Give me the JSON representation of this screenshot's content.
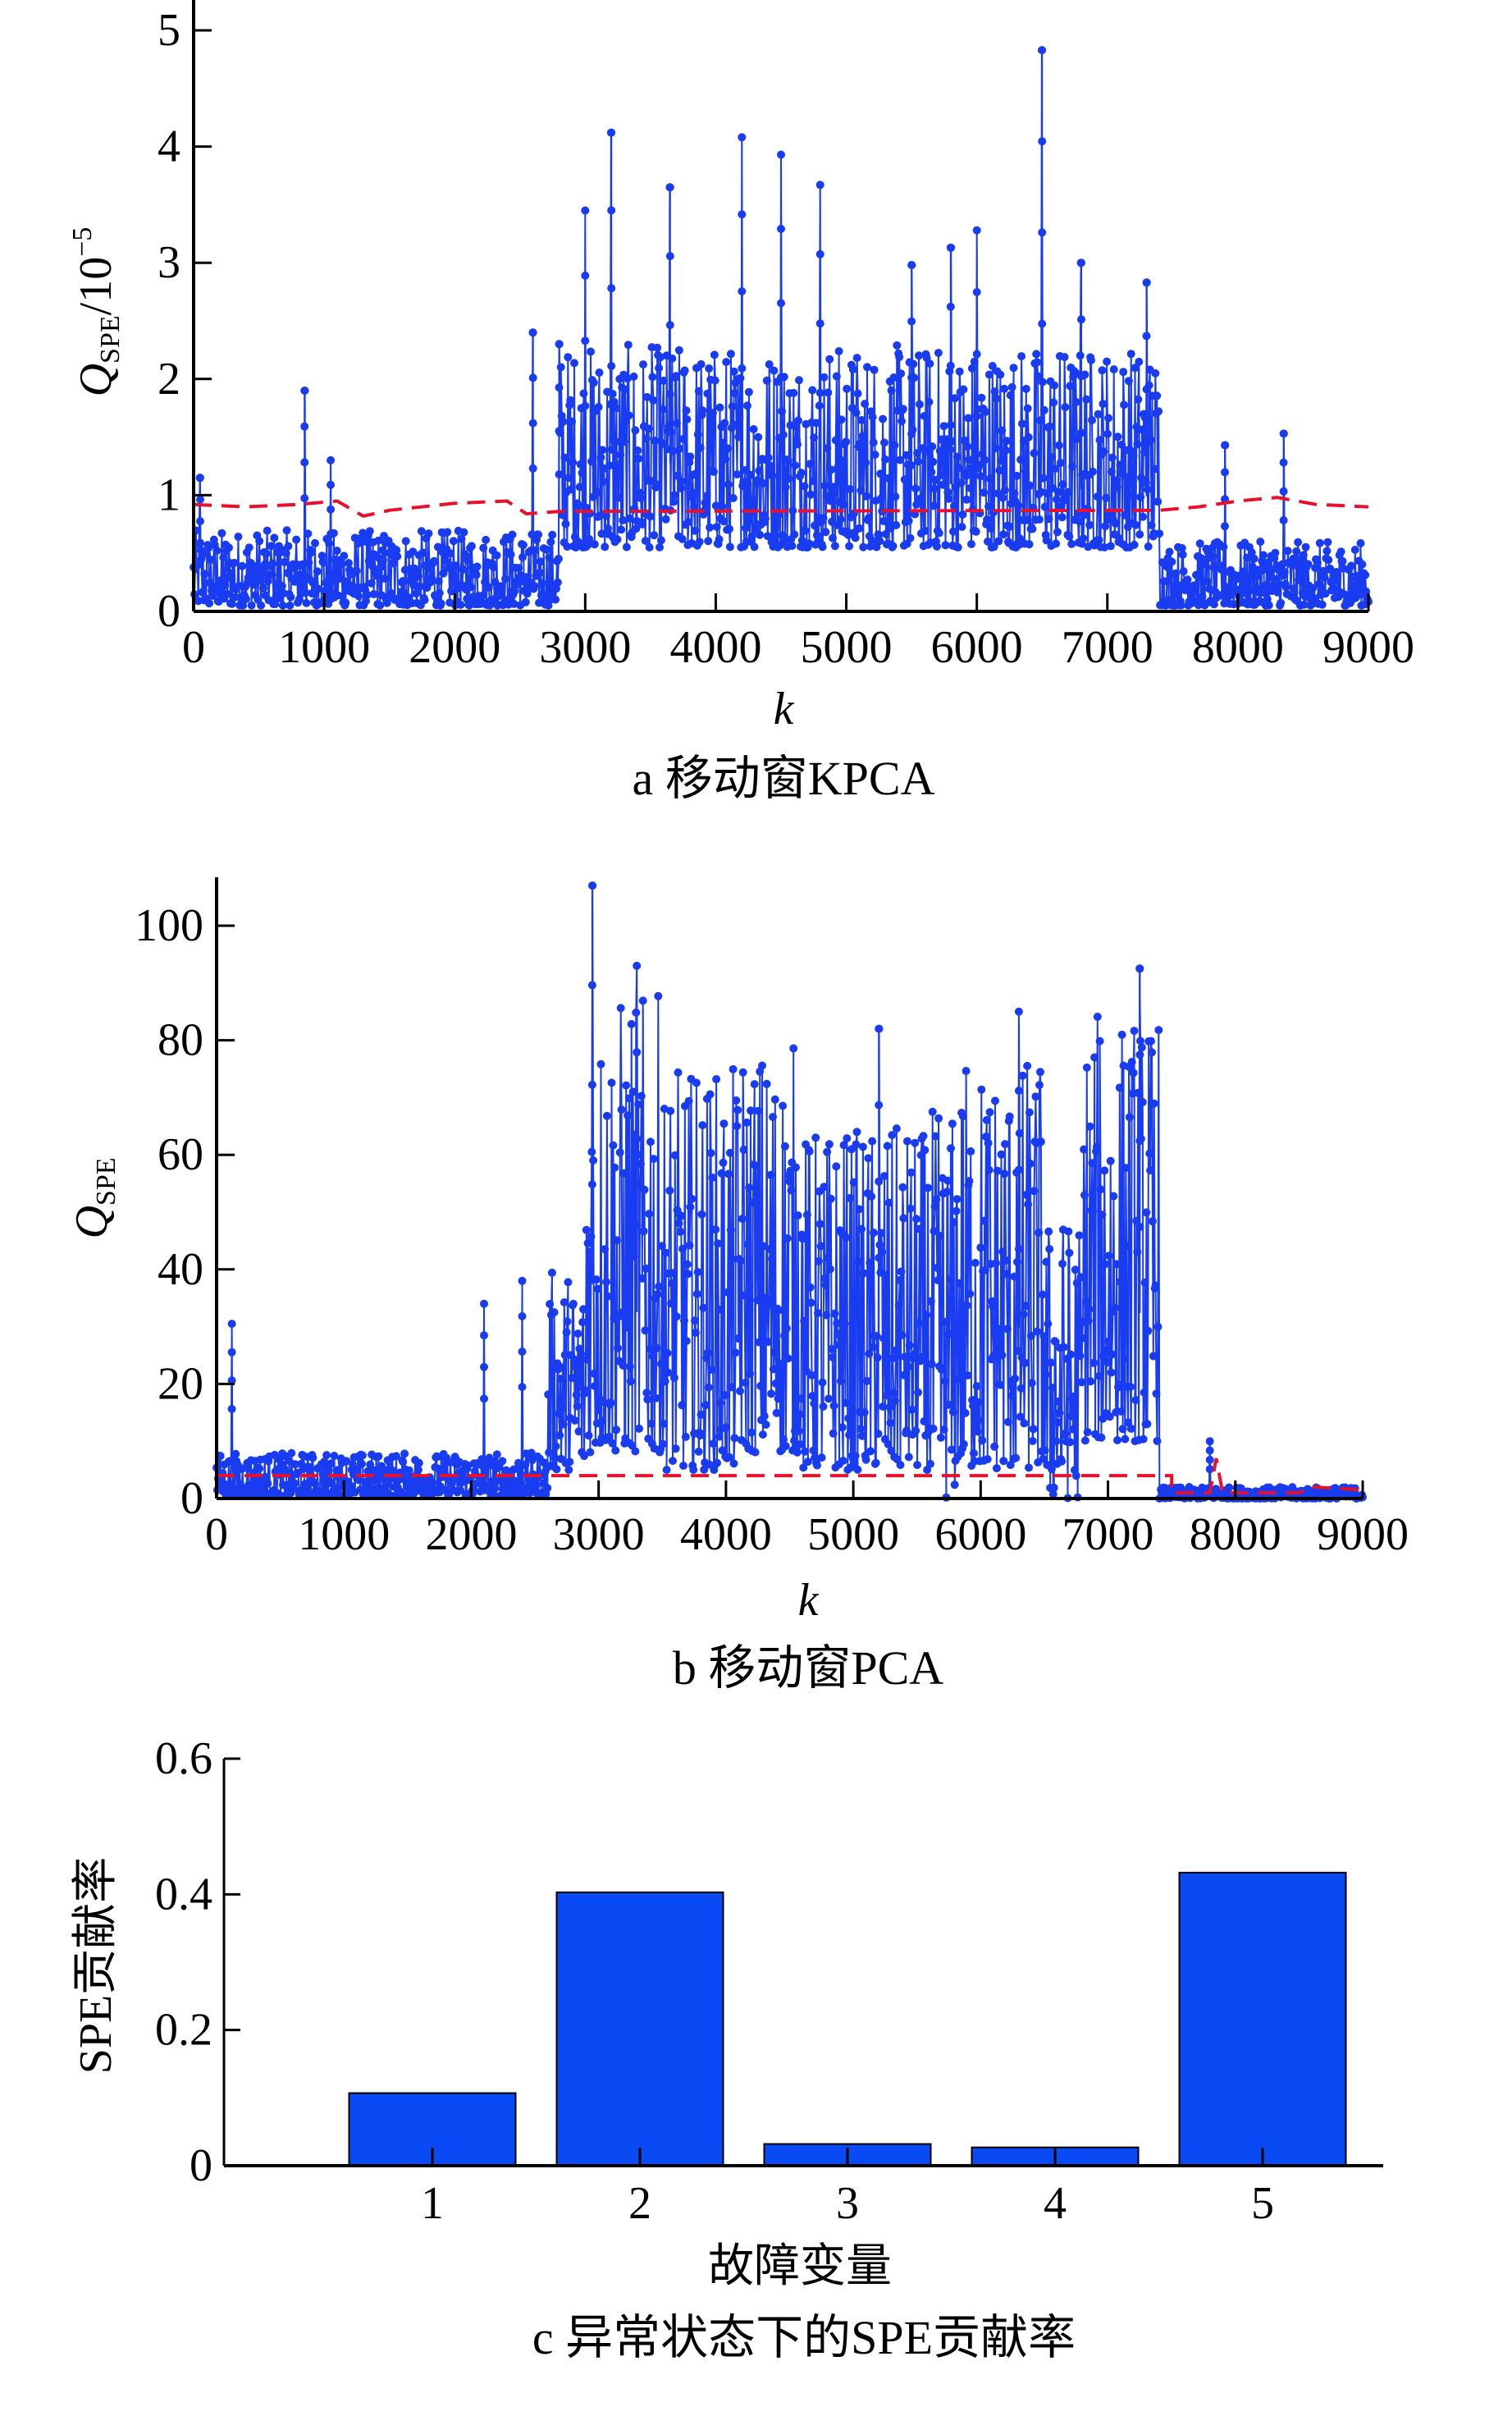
{
  "colors": {
    "series": "#1a3cf0",
    "threshold": "#e8102a",
    "bar": "#0a4af5",
    "axis": "#000000"
  },
  "chart_data": [
    {
      "type": "line",
      "panel": "a",
      "caption": "a  移动窗KPCA",
      "xlabel": "k",
      "ylabel_main": "Q",
      "ylabel_sub": "SPE",
      "ylabel_unit": "/10",
      "ylabel_exp": "−5",
      "xlim": [
        0,
        9000
      ],
      "ylim": [
        0,
        5
      ],
      "xticks": [
        "0",
        "1000",
        "2000",
        "3000",
        "4000",
        "5000",
        "6000",
        "7000",
        "8000",
        "9000"
      ],
      "yticks": [
        "0",
        "1",
        "2",
        "3",
        "4",
        "5"
      ],
      "series": [
        {
          "name": "Q_SPE",
          "segments": [
            {
              "from": 0,
              "to": 2800,
              "low": 0.05,
              "high": 0.7
            },
            {
              "from": 2800,
              "to": 7400,
              "low": 0.55,
              "high": 2.3
            },
            {
              "from": 7400,
              "to": 9000,
              "low": 0.05,
              "high": 0.6
            }
          ],
          "peaks": [
            [
              50,
              1.15
            ],
            [
              850,
              1.9
            ],
            [
              1050,
              1.3
            ],
            [
              2600,
              2.4
            ],
            [
              2800,
              2.3
            ],
            [
              3000,
              3.45
            ],
            [
              3200,
              4.12
            ],
            [
              3650,
              3.65
            ],
            [
              4200,
              4.08
            ],
            [
              4500,
              3.93
            ],
            [
              4800,
              3.67
            ],
            [
              5500,
              2.98
            ],
            [
              5800,
              3.13
            ],
            [
              6000,
              3.28
            ],
            [
              6500,
              4.83
            ],
            [
              6800,
              3.0
            ],
            [
              7300,
              2.83
            ],
            [
              7900,
              1.43
            ],
            [
              8350,
              1.53
            ]
          ]
        }
      ],
      "threshold": [
        [
          0,
          0.92
        ],
        [
          400,
          0.9
        ],
        [
          800,
          0.92
        ],
        [
          1100,
          0.95
        ],
        [
          1300,
          0.82
        ],
        [
          1500,
          0.87
        ],
        [
          2000,
          0.93
        ],
        [
          2400,
          0.95
        ],
        [
          2550,
          0.84
        ],
        [
          2800,
          0.86
        ],
        [
          7400,
          0.87
        ],
        [
          7700,
          0.9
        ],
        [
          8000,
          0.95
        ],
        [
          8300,
          0.98
        ],
        [
          8600,
          0.92
        ],
        [
          9000,
          0.9
        ]
      ]
    },
    {
      "type": "line",
      "panel": "b",
      "caption": "b  移动窗PCA",
      "xlabel": "k",
      "ylabel_main": "Q",
      "ylabel_sub": "SPE",
      "xlim": [
        0,
        9000
      ],
      "ylim": [
        0,
        110
      ],
      "xticks": [
        "0",
        "1000",
        "2000",
        "3000",
        "4000",
        "5000",
        "6000",
        "7000",
        "8000",
        "9000"
      ],
      "yticks": [
        "0",
        "20",
        "40",
        "60",
        "80",
        "100"
      ],
      "series": [
        {
          "name": "Q_SPE",
          "segments": [
            {
              "from": 0,
              "to": 2600,
              "low": 0.5,
              "high": 8
            },
            {
              "from": 2600,
              "to": 2900,
              "low": 5,
              "high": 40
            },
            {
              "from": 2900,
              "to": 3500,
              "low": 8,
              "high": 88
            },
            {
              "from": 3500,
              "to": 4100,
              "low": 5,
              "high": 75
            },
            {
              "from": 4100,
              "to": 4600,
              "low": 8,
              "high": 80
            },
            {
              "from": 4600,
              "to": 5600,
              "low": 5,
              "high": 65
            },
            {
              "from": 5600,
              "to": 5800,
              "low": 0,
              "high": 68
            },
            {
              "from": 5800,
              "to": 6500,
              "low": 5,
              "high": 78
            },
            {
              "from": 6500,
              "to": 6800,
              "low": 0,
              "high": 50
            },
            {
              "from": 6800,
              "to": 7400,
              "low": 10,
              "high": 85
            },
            {
              "from": 7400,
              "to": 9000,
              "low": 0,
              "high": 2
            }
          ],
          "peaks": [
            [
              120,
              30.5
            ],
            [
              2100,
              34
            ],
            [
              2400,
              38
            ],
            [
              2950,
              107
            ],
            [
              3300,
              93
            ],
            [
              5200,
              82
            ],
            [
              6300,
              85
            ],
            [
              7250,
              92.5
            ],
            [
              7800,
              10
            ]
          ]
        }
      ],
      "threshold": [
        [
          0,
          4
        ],
        [
          7500,
          4
        ],
        [
          7500,
          1
        ],
        [
          7800,
          1
        ],
        [
          7850,
          7
        ],
        [
          7900,
          1
        ],
        [
          8500,
          1
        ],
        [
          8600,
          2
        ],
        [
          9000,
          1.5
        ]
      ]
    },
    {
      "type": "bar",
      "panel": "c",
      "caption": "c 异常状态下的SPE贡献率",
      "xlabel": "故障变量",
      "ylabel": "SPE贡献率",
      "categories": [
        "1",
        "2",
        "3",
        "4",
        "5"
      ],
      "values": [
        0.107,
        0.403,
        0.032,
        0.027,
        0.432
      ],
      "ylim": [
        0,
        0.6
      ],
      "yticks": [
        "0",
        "0.2",
        "0.4",
        "0.6"
      ]
    }
  ]
}
